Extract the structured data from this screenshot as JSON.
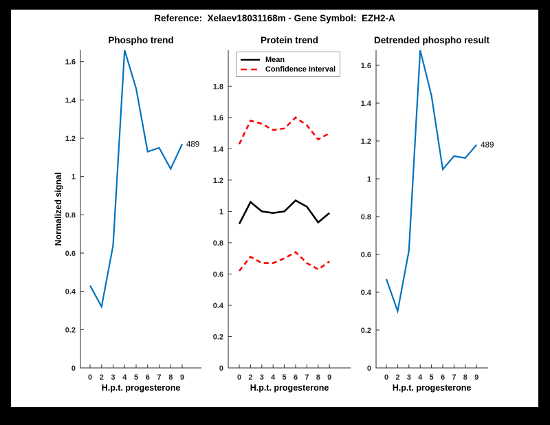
{
  "figure": {
    "title": "Reference:  Xelaev18031168m - Gene Symbol:  EZH2-A",
    "background_color": "#000000",
    "paper_color": "#ffffff",
    "axis_color": "#262626",
    "accent_blue": "#0072BD",
    "accent_red": "#ff0000"
  },
  "chart_data": [
    {
      "type": "line",
      "title": "Phospho trend",
      "xlabel": "H.p.t. progesterone",
      "ylabel": "Normalized signal",
      "x": [
        0,
        2,
        3,
        4,
        5,
        6,
        7,
        8,
        9
      ],
      "x_ticklabels": [
        "0",
        "2",
        "3",
        "4",
        "5",
        "6",
        "7",
        "8",
        "9"
      ],
      "y_ticks": [
        0,
        0.2,
        0.4,
        0.6,
        0.8,
        1.0,
        1.2,
        1.4,
        1.6
      ],
      "y_ticklabels": [
        "0",
        "0.2",
        "0.4",
        "0.6",
        "0.8",
        "1",
        "1.2",
        "1.4",
        "1.6"
      ],
      "ylim": [
        0,
        1.66
      ],
      "grid": false,
      "series": [
        {
          "name": "phospho-signal",
          "color": "#0072BD",
          "dash": "solid",
          "width": 2.2,
          "values": [
            0.43,
            0.32,
            0.64,
            1.66,
            1.46,
            1.13,
            1.15,
            1.04,
            1.17
          ]
        }
      ],
      "annotation": {
        "text": "489"
      }
    },
    {
      "type": "line",
      "title": "Protein trend",
      "xlabel": "H.p.t. progesterone",
      "ylabel": "",
      "x": [
        0,
        2,
        3,
        4,
        5,
        6,
        7,
        8,
        9
      ],
      "x_ticklabels": [
        "0",
        "2",
        "3",
        "4",
        "5",
        "6",
        "7",
        "8",
        "9"
      ],
      "y_ticks": [
        0,
        0.2,
        0.4,
        0.6,
        0.8,
        1.0,
        1.2,
        1.4,
        1.6,
        1.8
      ],
      "y_ticklabels": [
        "0",
        "0.2",
        "0.4",
        "0.6",
        "0.8",
        "1",
        "1.2",
        "1.4",
        "1.6",
        "1.8"
      ],
      "ylim": [
        0,
        2.03
      ],
      "grid": false,
      "legend": {
        "position": "northwest",
        "entries": [
          {
            "label": "Mean",
            "color": "#000000",
            "dash": "solid"
          },
          {
            "label": "Confidence Interval",
            "color": "#ff0000",
            "dash": "dashed"
          }
        ]
      },
      "series": [
        {
          "name": "upper-confidence-interval",
          "color": "#ff0000",
          "dash": "dashed",
          "width": 2.6,
          "values": [
            1.43,
            1.58,
            1.56,
            1.52,
            1.53,
            1.6,
            1.55,
            1.46,
            1.5
          ]
        },
        {
          "name": "mean",
          "color": "#000000",
          "dash": "solid",
          "width": 2.6,
          "values": [
            0.92,
            1.06,
            1.0,
            0.99,
            1.0,
            1.07,
            1.03,
            0.93,
            0.99
          ]
        },
        {
          "name": "lower-confidence-interval",
          "color": "#ff0000",
          "dash": "dashed",
          "width": 2.6,
          "values": [
            0.62,
            0.71,
            0.67,
            0.67,
            0.7,
            0.74,
            0.67,
            0.63,
            0.68
          ]
        }
      ]
    },
    {
      "type": "line",
      "title": "Detrended phospho result",
      "xlabel": "H.p.t. progesterone",
      "ylabel": "",
      "x": [
        0,
        2,
        3,
        4,
        5,
        6,
        7,
        8,
        9
      ],
      "x_ticklabels": [
        "0",
        "2",
        "3",
        "4",
        "5",
        "6",
        "7",
        "8",
        "9"
      ],
      "y_ticks": [
        0,
        0.2,
        0.4,
        0.6,
        0.8,
        1.0,
        1.2,
        1.4,
        1.6
      ],
      "y_ticklabels": [
        "0",
        "0.2",
        "0.4",
        "0.6",
        "0.8",
        "1",
        "1.2",
        "1.4",
        "1.6"
      ],
      "ylim": [
        0,
        1.68
      ],
      "grid": false,
      "series": [
        {
          "name": "detrended-phospho-signal",
          "color": "#0072BD",
          "dash": "solid",
          "width": 2.2,
          "values": [
            0.47,
            0.3,
            0.62,
            1.68,
            1.44,
            1.05,
            1.12,
            1.11,
            1.18
          ]
        }
      ],
      "annotation": {
        "text": "489"
      }
    }
  ]
}
